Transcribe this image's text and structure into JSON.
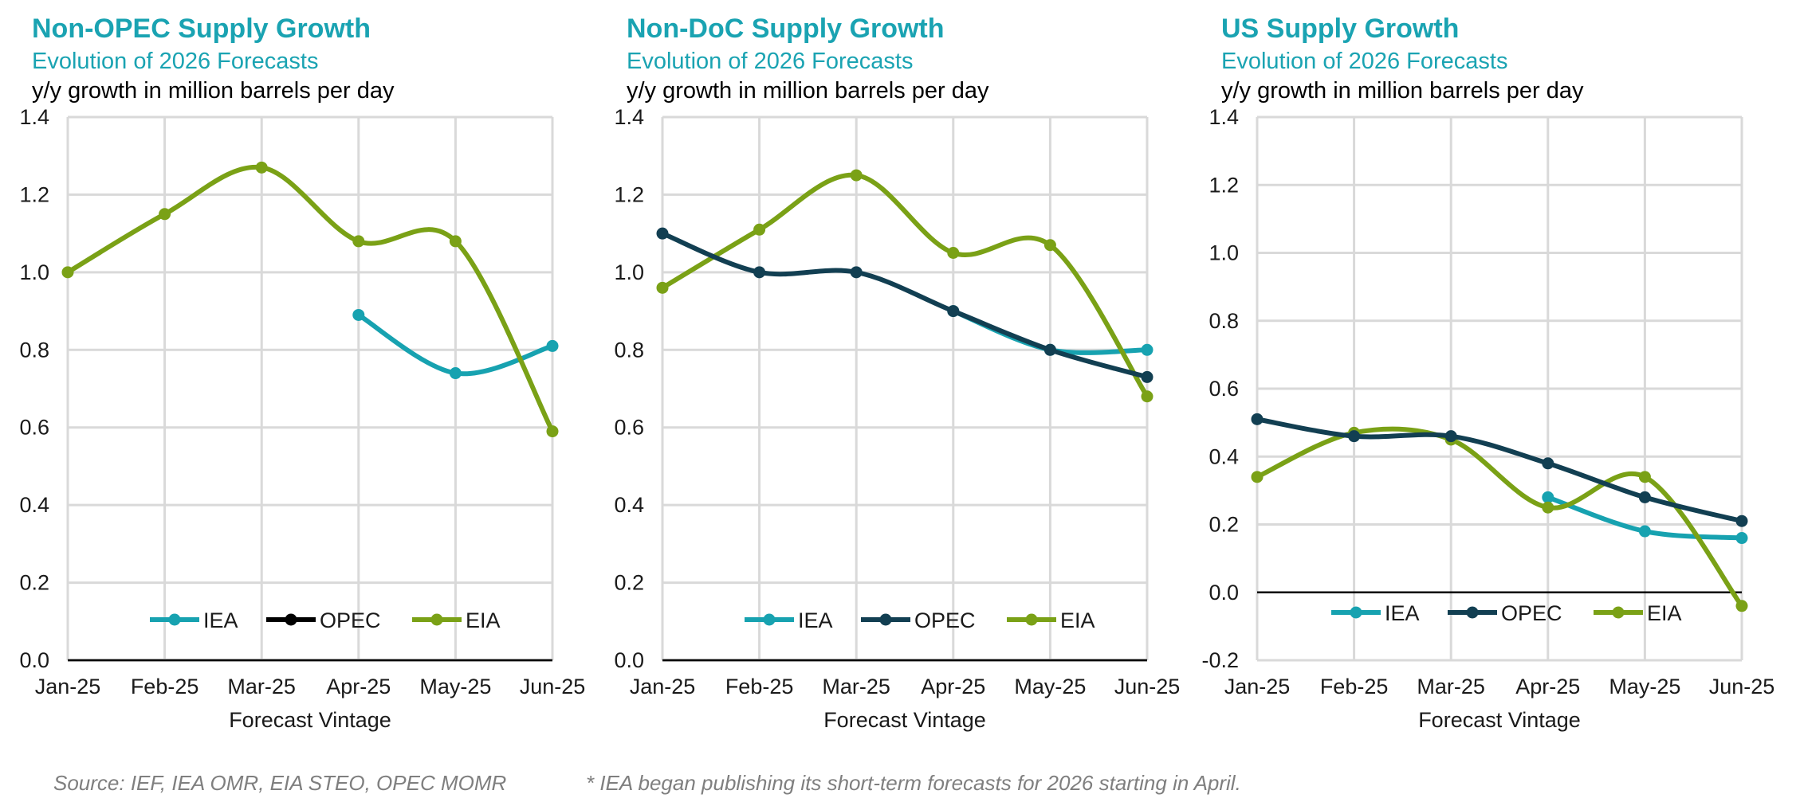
{
  "chart_data": [
    {
      "type": "line",
      "title": "Non-OPEC Supply Growth",
      "subtitle": "Evolution of 2026 Forecasts",
      "ylabel": "y/y growth in million barrels per day",
      "xlabel": "Forecast Vintage",
      "categories": [
        "Jan-25",
        "Feb-25",
        "Mar-25",
        "Apr-25",
        "May-25",
        "Jun-25"
      ],
      "ylim": [
        0,
        1.4
      ],
      "yticks": [
        "0.0",
        "0.2",
        "0.4",
        "0.6",
        "0.8",
        "1.0",
        "1.2",
        "1.4"
      ],
      "legend": "bottom-center",
      "series": [
        {
          "name": "IEA",
          "color": "#17a2b0",
          "values": [
            null,
            null,
            null,
            0.89,
            0.74,
            0.81
          ]
        },
        {
          "name": "OPEC",
          "color": "#000000",
          "values": [
            null,
            null,
            null,
            null,
            null,
            null
          ]
        },
        {
          "name": "EIA",
          "color": "#7aa116",
          "values": [
            1.0,
            1.15,
            1.27,
            1.08,
            1.08,
            0.59
          ]
        }
      ]
    },
    {
      "type": "line",
      "title": "Non-DoC Supply Growth",
      "subtitle": "Evolution of 2026 Forecasts",
      "ylabel": "y/y growth in million barrels per day",
      "xlabel": "Forecast Vintage",
      "categories": [
        "Jan-25",
        "Feb-25",
        "Mar-25",
        "Apr-25",
        "May-25",
        "Jun-25"
      ],
      "ylim": [
        0,
        1.4
      ],
      "yticks": [
        "0.0",
        "0.2",
        "0.4",
        "0.6",
        "0.8",
        "1.0",
        "1.2",
        "1.4"
      ],
      "legend": "bottom-center",
      "series": [
        {
          "name": "IEA",
          "color": "#17a2b0",
          "values": [
            null,
            null,
            null,
            0.9,
            0.8,
            0.8
          ]
        },
        {
          "name": "OPEC",
          "color": "#123f52",
          "values": [
            1.1,
            1.0,
            1.0,
            0.9,
            0.8,
            0.73
          ]
        },
        {
          "name": "EIA",
          "color": "#7aa116",
          "values": [
            0.96,
            1.11,
            1.25,
            1.05,
            1.07,
            0.68
          ]
        }
      ]
    },
    {
      "type": "line",
      "title": "US Supply Growth",
      "subtitle": "Evolution of 2026 Forecasts",
      "ylabel": "y/y growth in million barrels per day",
      "xlabel": "Forecast Vintage",
      "categories": [
        "Jan-25",
        "Feb-25",
        "Mar-25",
        "Apr-25",
        "May-25",
        "Jun-25"
      ],
      "ylim": [
        -0.2,
        1.4
      ],
      "yticks": [
        "-0.2",
        "0.0",
        "0.2",
        "0.4",
        "0.6",
        "0.8",
        "1.0",
        "1.2",
        "1.4"
      ],
      "legend": "bottom-center",
      "series": [
        {
          "name": "IEA",
          "color": "#17a2b0",
          "values": [
            null,
            null,
            null,
            0.28,
            0.18,
            0.16
          ]
        },
        {
          "name": "OPEC",
          "color": "#123f52",
          "values": [
            0.51,
            0.46,
            0.46,
            0.38,
            0.28,
            0.21
          ]
        },
        {
          "name": "EIA",
          "color": "#7aa116",
          "values": [
            0.34,
            0.47,
            0.45,
            0.25,
            0.34,
            -0.04
          ]
        }
      ]
    }
  ],
  "footer": {
    "source": "Source: IEF, IEA OMR, EIA STEO, OPEC MOMR",
    "note": "* IEA began publishing its short-term forecasts for 2026 starting in April."
  }
}
